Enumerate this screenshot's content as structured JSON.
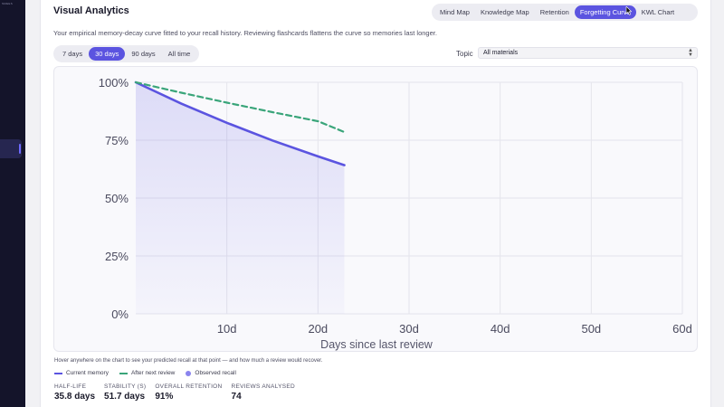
{
  "sidebar": {
    "brand": "SMEES"
  },
  "app": {
    "title": "Visual Analytics",
    "subtitle": "Your empirical memory-decay curve fitted to your recall history. Reviewing flashcards flattens the curve so memories last longer."
  },
  "tabs": [
    {
      "label": "Mind Map",
      "active": false
    },
    {
      "label": "Knowledge Map",
      "active": false
    },
    {
      "label": "Retention",
      "active": false
    },
    {
      "label": "Forgetting Curve",
      "active": true
    },
    {
      "label": "KWL Chart",
      "active": false
    }
  ],
  "ranges": [
    {
      "label": "7 days",
      "active": false
    },
    {
      "label": "30 days",
      "active": true
    },
    {
      "label": "90 days",
      "active": false
    },
    {
      "label": "All time",
      "active": false
    }
  ],
  "topic": {
    "label": "Topic",
    "value": "All materials"
  },
  "chart_data": {
    "type": "line",
    "xlabel": "Days since last review",
    "ylabel": "",
    "xlim": [
      0,
      60
    ],
    "ylim": [
      0,
      100
    ],
    "x_ticks": [
      "10d",
      "20d",
      "30d",
      "40d",
      "50d",
      "60d"
    ],
    "y_ticks": [
      "100%",
      "75%",
      "50%",
      "25%",
      "0%"
    ],
    "grid": true,
    "series": [
      {
        "name": "Current memory",
        "color": "#5b54e0",
        "style": "solid",
        "fill": true,
        "x": [
          0,
          5,
          10,
          15,
          20,
          22.9
        ],
        "y": [
          100,
          90.8,
          82.5,
          74.9,
          68.0,
          64.2
        ]
      },
      {
        "name": "After next review",
        "color": "#3aa57a",
        "style": "dashed",
        "fill": false,
        "x": [
          0,
          5,
          10,
          15,
          20,
          22.9
        ],
        "y": [
          100,
          95.5,
          91.2,
          87.1,
          83.2,
          78.5
        ]
      }
    ]
  },
  "hint": "Hover anywhere on the chart to see your predicted recall at that point — and how much a review would recover.",
  "legend": {
    "current": "Current memory",
    "after": "After next review",
    "observed": "Observed recall"
  },
  "stats": [
    {
      "label": "Half-life",
      "value": "35.8 days"
    },
    {
      "label": "Stability (S)",
      "value": "51.7 days"
    },
    {
      "label": "Overall retention",
      "value": "91%"
    },
    {
      "label": "Reviews analysed",
      "value": "74"
    }
  ]
}
